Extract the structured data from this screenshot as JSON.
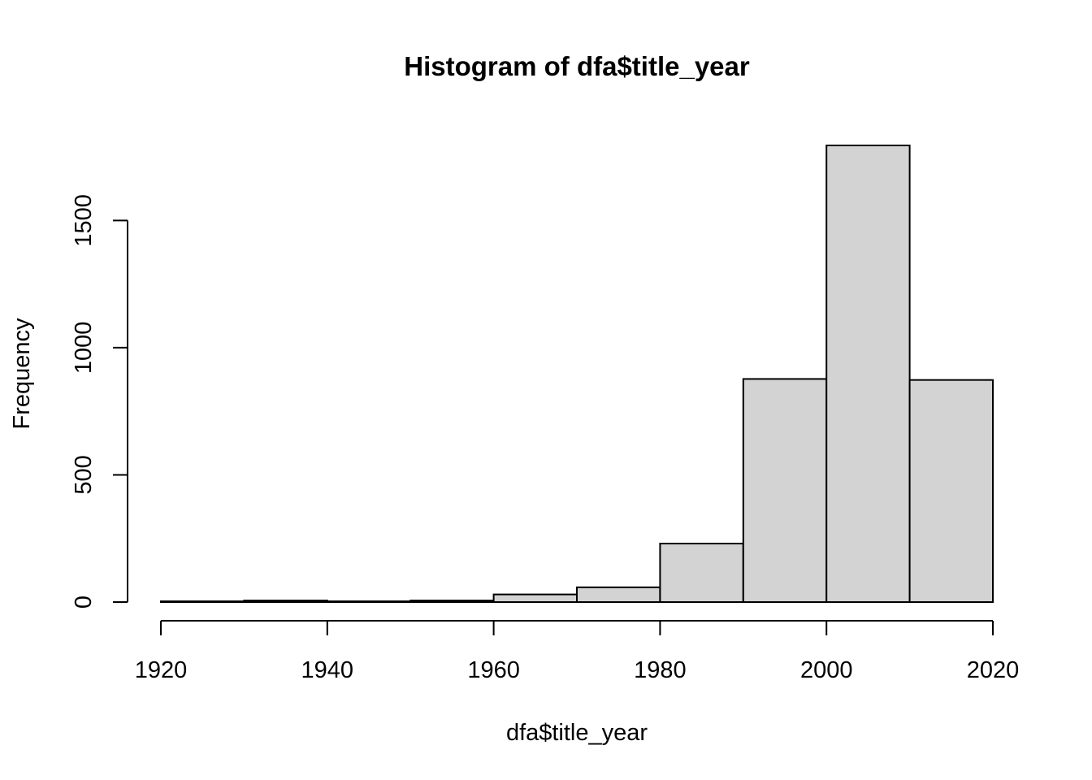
{
  "chart_data": {
    "type": "bar",
    "title": "Histogram of dfa$title_year",
    "xlabel": "dfa$title_year",
    "ylabel": "Frequency",
    "bins": [
      {
        "start": 1920,
        "end": 1930,
        "count": 3
      },
      {
        "start": 1930,
        "end": 1940,
        "count": 6
      },
      {
        "start": 1940,
        "end": 1950,
        "count": 3
      },
      {
        "start": 1950,
        "end": 1960,
        "count": 6
      },
      {
        "start": 1960,
        "end": 1970,
        "count": 30
      },
      {
        "start": 1970,
        "end": 1980,
        "count": 58
      },
      {
        "start": 1980,
        "end": 1990,
        "count": 230
      },
      {
        "start": 1990,
        "end": 2000,
        "count": 877
      },
      {
        "start": 2000,
        "end": 2010,
        "count": 1795
      },
      {
        "start": 2010,
        "end": 2020,
        "count": 873
      }
    ],
    "xlim": [
      1920,
      2020
    ],
    "ylim": [
      0,
      1795
    ],
    "x_ticks": [
      1920,
      1940,
      1960,
      1980,
      2000,
      2020
    ],
    "y_ticks": [
      0,
      500,
      1000,
      1500
    ],
    "grid": false,
    "bar_color": "#d3d3d3",
    "edge_color": "#000000"
  }
}
